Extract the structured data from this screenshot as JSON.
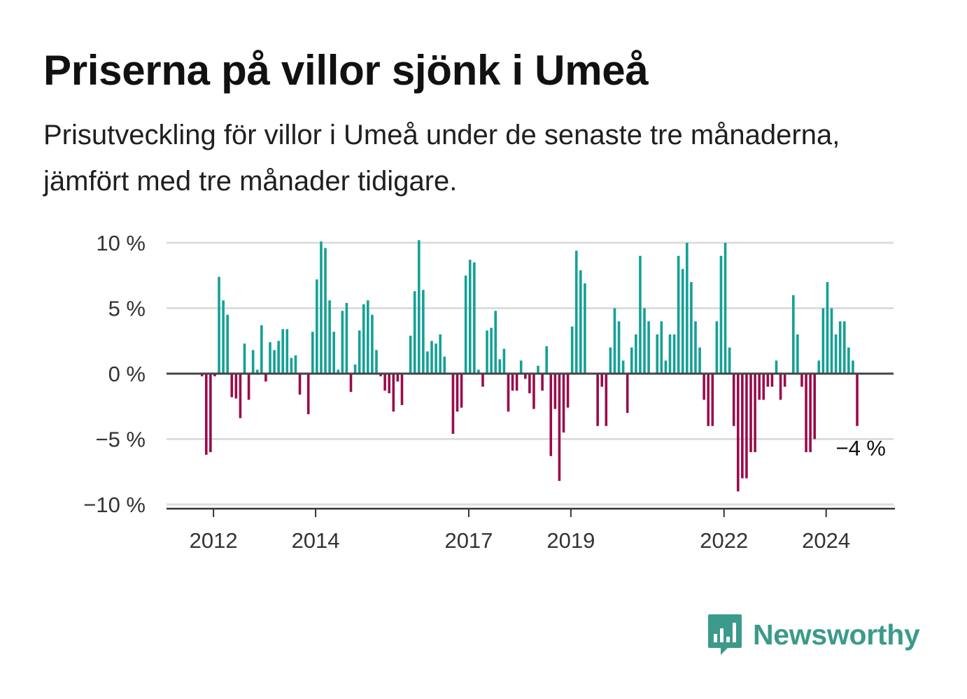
{
  "header": {
    "title": "Priserna på villor sjönk i Umeå",
    "subtitle": "Prisutveckling för villor i Umeå under de senaste tre månaderna, jämfört med tre månader tidigare."
  },
  "brand": {
    "name": "Newsworthy",
    "icon": "newsworthy-logo-icon",
    "color": "#3c9a8b"
  },
  "colors": {
    "positive": "#13a195",
    "negative": "#9a0b4b",
    "zero_line": "#444444",
    "grid": "#dddddd"
  },
  "chart_data": {
    "type": "bar",
    "x_start": "2011-10",
    "x_interval": "month",
    "ylim": [
      -10,
      10
    ],
    "y_ticks": [
      -10,
      -5,
      0,
      5,
      10
    ],
    "y_tick_labels": [
      "−10 %",
      "−5 %",
      "0 %",
      "5 %",
      "10 %"
    ],
    "x_tick_labels": [
      {
        "label": "2012",
        "date": "2012-01"
      },
      {
        "label": "2014",
        "date": "2014-01"
      },
      {
        "label": "2017",
        "date": "2017-01"
      },
      {
        "label": "2019",
        "date": "2019-01"
      },
      {
        "label": "2022",
        "date": "2022-01"
      },
      {
        "label": "2024",
        "date": "2024-01"
      }
    ],
    "grid": true,
    "last_value_label": "−4 %",
    "values": [
      -0.2,
      -6.2,
      -6.0,
      -0.2,
      7.4,
      5.6,
      4.5,
      -1.8,
      -1.9,
      -3.4,
      2.3,
      -2.0,
      1.8,
      0.3,
      3.7,
      -0.6,
      2.4,
      1.8,
      2.5,
      3.4,
      3.4,
      1.2,
      1.4,
      -1.6,
      0.0,
      -3.1,
      3.2,
      7.2,
      10.1,
      9.6,
      5.6,
      3.2,
      0.3,
      4.8,
      5.4,
      -1.4,
      0.7,
      3.3,
      5.3,
      5.6,
      4.5,
      1.8,
      -0.2,
      -1.3,
      -1.5,
      -2.9,
      -0.6,
      -2.4,
      0.0,
      2.9,
      6.3,
      10.2,
      6.4,
      1.7,
      2.5,
      2.3,
      3.0,
      1.3,
      0.0,
      -4.6,
      -2.9,
      -2.6,
      7.5,
      8.7,
      8.5,
      0.3,
      -1.0,
      3.3,
      3.5,
      4.8,
      1.1,
      1.9,
      -2.9,
      -1.3,
      -1.3,
      1.0,
      -0.4,
      -1.5,
      -2.7,
      0.6,
      -1.3,
      2.1,
      -6.3,
      -2.7,
      -8.2,
      -4.5,
      -2.6,
      3.6,
      9.4,
      7.9,
      6.9,
      0.0,
      0.0,
      -4.0,
      -1.0,
      -4.0,
      2.0,
      5.0,
      4.0,
      1.0,
      -3.0,
      2.0,
      3.0,
      9.0,
      5.0,
      4.0,
      0.0,
      3.0,
      4.0,
      1.0,
      3.0,
      3.0,
      9.0,
      8.0,
      10.0,
      7.0,
      4.0,
      2.0,
      -2.0,
      -4.0,
      -4.0,
      4.0,
      9.0,
      10.0,
      2.0,
      -4.0,
      -9.0,
      -8.0,
      -8.0,
      -6.0,
      -6.0,
      -2.0,
      -2.0,
      -1.0,
      -1.0,
      1.0,
      -2.0,
      -1.0,
      0.0,
      6.0,
      3.0,
      -1.0,
      -6.0,
      -6.0,
      -5.0,
      1.0,
      5.0,
      7.0,
      5.0,
      3.0,
      4.0,
      4.0,
      2.0,
      1.0,
      -4.0
    ]
  }
}
